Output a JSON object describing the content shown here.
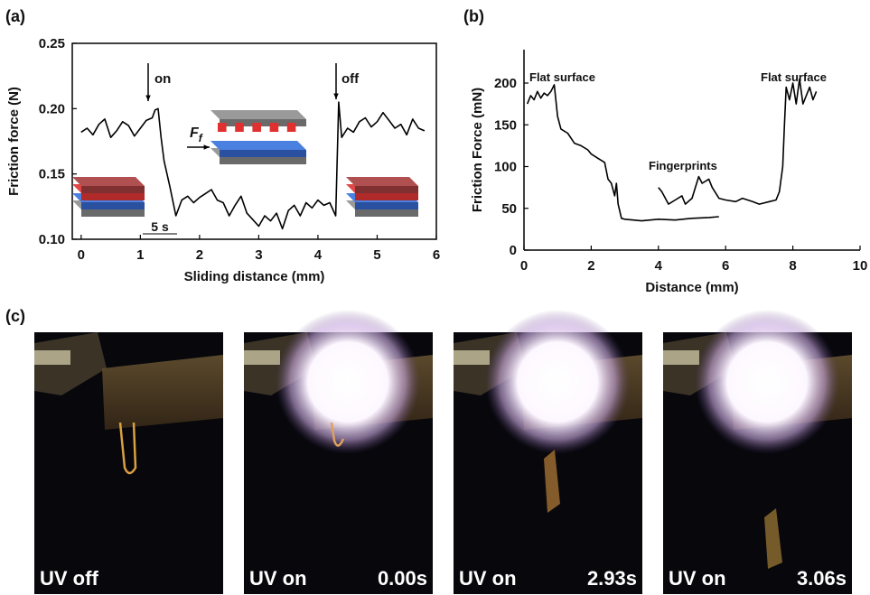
{
  "chart_data": [
    {
      "type": "line",
      "panel_label": "(a)",
      "x_label": "Sliding distance (mm)",
      "y_label": "Friction force (N)",
      "xlim": [
        -0.15,
        6
      ],
      "xticks": [
        0,
        1,
        2,
        3,
        4,
        5,
        6
      ],
      "ylim": [
        0.1,
        0.25
      ],
      "yticks": [
        {
          "value": 0.1,
          "label": "0.10"
        },
        0.15,
        {
          "value": 0.2,
          "label": "0.20"
        },
        0.25
      ],
      "annotations": [
        "on",
        "off",
        "5 s"
      ],
      "force_symbol": {
        "main": "F",
        "sub": "f"
      },
      "series": [
        {
          "color": "#000000",
          "x": [
            0.0,
            0.1,
            0.2,
            0.3,
            0.4,
            0.5,
            0.6,
            0.7,
            0.8,
            0.9,
            1.0,
            1.1,
            1.2,
            1.25,
            1.3,
            1.35,
            1.4,
            1.5,
            1.6,
            1.7,
            1.8,
            1.9,
            2.0,
            2.1,
            2.2,
            2.3,
            2.4,
            2.5,
            2.6,
            2.7,
            2.8,
            2.9,
            3.0,
            3.1,
            3.2,
            3.3,
            3.4,
            3.5,
            3.6,
            3.7,
            3.8,
            3.9,
            4.0,
            4.1,
            4.2,
            4.3,
            4.35,
            4.4,
            4.5,
            4.6,
            4.7,
            4.8,
            4.9,
            5.0,
            5.1,
            5.2,
            5.3,
            5.4,
            5.5,
            5.6,
            5.7,
            5.8
          ],
          "values": [
            0.182,
            0.185,
            0.18,
            0.188,
            0.192,
            0.178,
            0.183,
            0.19,
            0.187,
            0.179,
            0.185,
            0.191,
            0.193,
            0.199,
            0.2,
            0.178,
            0.16,
            0.14,
            0.118,
            0.13,
            0.133,
            0.128,
            0.132,
            0.135,
            0.138,
            0.13,
            0.128,
            0.118,
            0.126,
            0.133,
            0.12,
            0.115,
            0.11,
            0.118,
            0.114,
            0.12,
            0.108,
            0.122,
            0.126,
            0.118,
            0.128,
            0.124,
            0.13,
            0.126,
            0.128,
            0.118,
            0.205,
            0.178,
            0.185,
            0.182,
            0.19,
            0.193,
            0.186,
            0.19,
            0.197,
            0.191,
            0.185,
            0.188,
            0.18,
            0.192,
            0.185,
            0.183
          ]
        }
      ]
    },
    {
      "type": "line",
      "panel_label": "(b)",
      "x_label": "Distance (mm)",
      "y_label": "Friction Force  (mN)",
      "xlim": [
        0,
        10
      ],
      "xticks": [
        0,
        2,
        4,
        6,
        8,
        10
      ],
      "ylim": [
        0,
        240
      ],
      "yticks": [
        0,
        50,
        100,
        150,
        200
      ],
      "annotations": [
        "Flat surface",
        "Fingerprints",
        "Flat surface"
      ],
      "series": [
        {
          "color": "#000000",
          "x": [
            0.1,
            0.2,
            0.3,
            0.4,
            0.5,
            0.6,
            0.7,
            0.8,
            0.9,
            1.0,
            1.1,
            1.3,
            1.5,
            1.7,
            1.9,
            2.0,
            2.2,
            2.4,
            2.5,
            2.6,
            2.7,
            2.75,
            2.8,
            2.9,
            3.0,
            3.5,
            4.0,
            4.5,
            5.0,
            5.5,
            5.8
          ],
          "values": [
            175,
            185,
            180,
            190,
            182,
            188,
            185,
            190,
            198,
            160,
            145,
            140,
            128,
            125,
            120,
            115,
            110,
            105,
            85,
            80,
            65,
            80,
            55,
            38,
            37,
            35,
            37,
            36,
            38,
            39,
            40
          ]
        },
        {
          "color": "#000000",
          "x": [
            4.0,
            4.1,
            4.3,
            4.5,
            4.7,
            4.8,
            5.0,
            5.1,
            5.2,
            5.3,
            5.5,
            5.6,
            5.8,
            6.0,
            6.3,
            6.5,
            6.8,
            7.0,
            7.3,
            7.5,
            7.6,
            7.7,
            7.75,
            7.8,
            7.9,
            8.0,
            8.1,
            8.2,
            8.3,
            8.5,
            8.6,
            8.7
          ],
          "values": [
            75,
            70,
            55,
            60,
            65,
            55,
            62,
            75,
            88,
            80,
            85,
            75,
            62,
            60,
            58,
            62,
            58,
            55,
            58,
            60,
            70,
            100,
            150,
            195,
            180,
            200,
            175,
            205,
            175,
            195,
            180,
            190
          ]
        }
      ]
    }
  ],
  "photos": {
    "panel_label": "(c)",
    "frames": [
      {
        "label": "UV off"
      },
      {
        "label": "UV on",
        "time": "0.00s"
      },
      {
        "label": "UV on",
        "time": "2.93s"
      },
      {
        "label": "UV on",
        "time": "3.06s"
      }
    ]
  }
}
